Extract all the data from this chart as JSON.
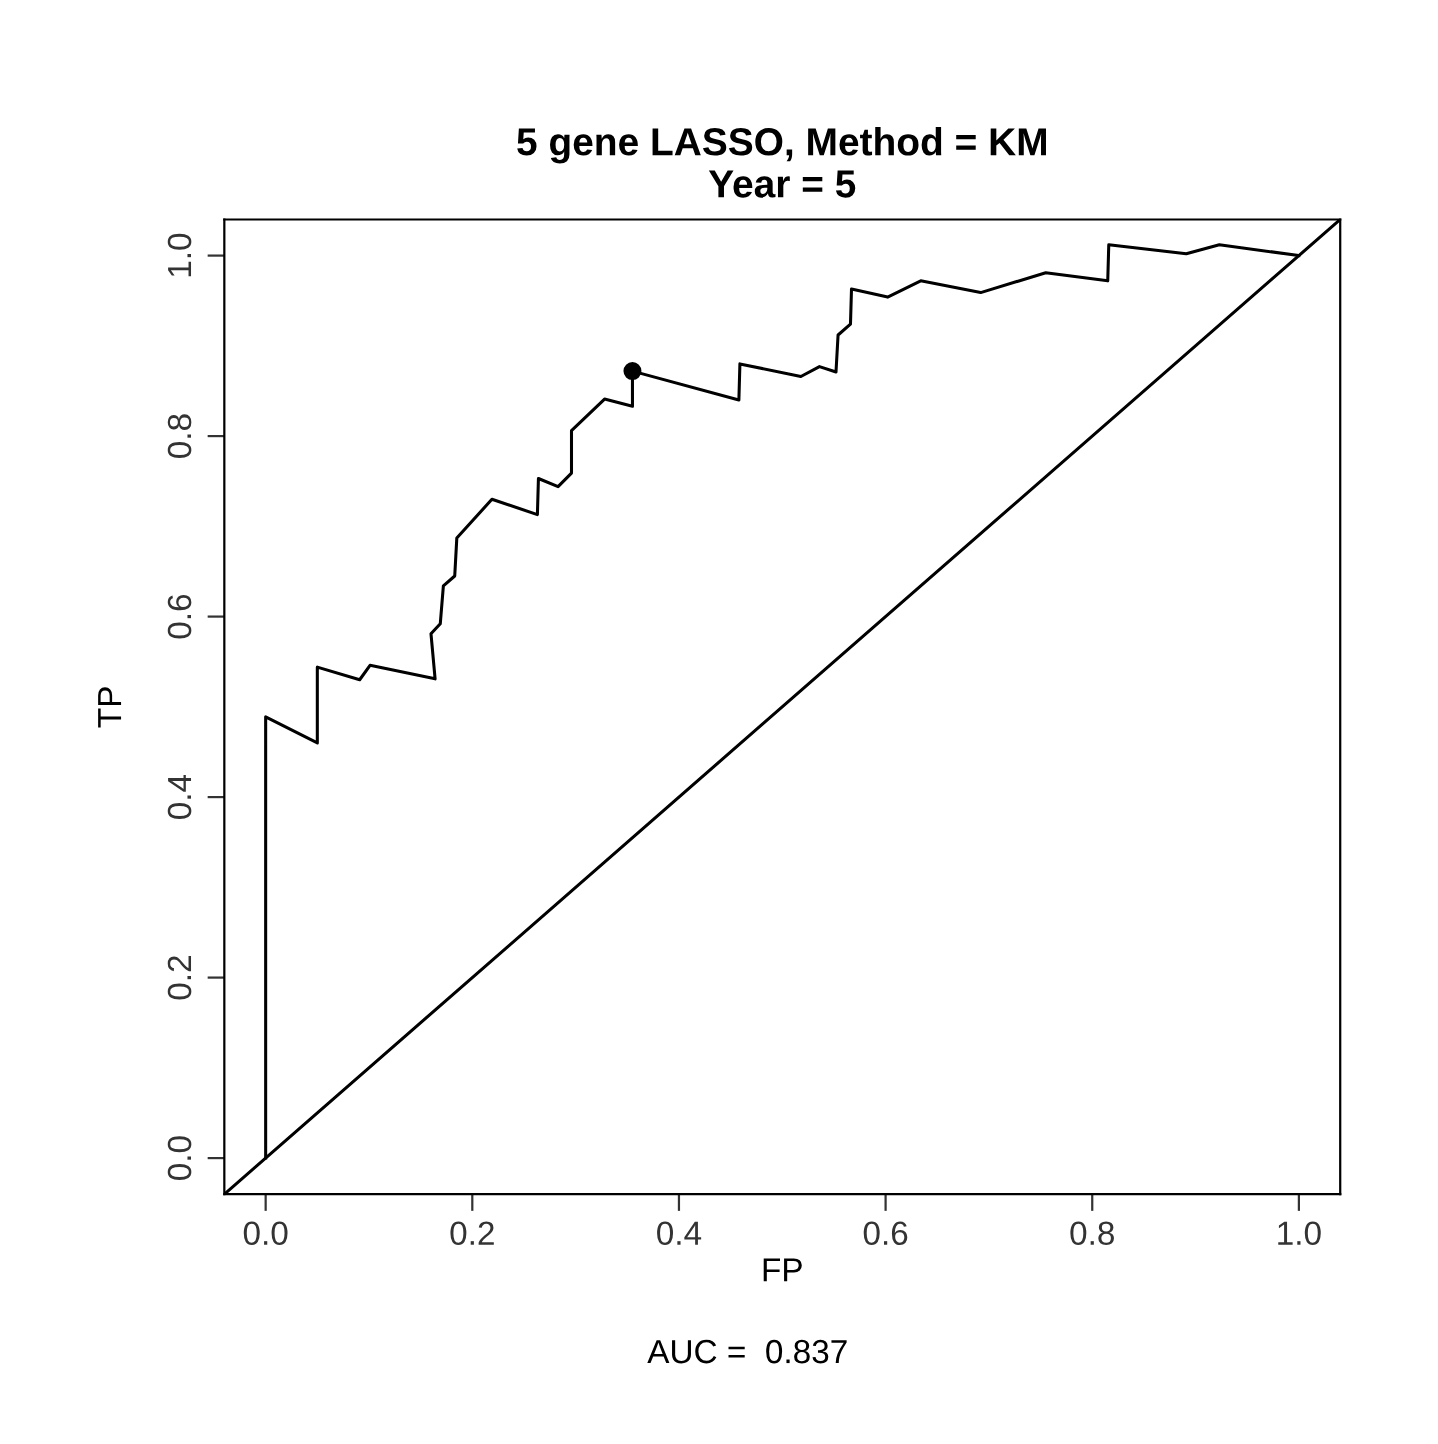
{
  "chart_data": {
    "type": "line",
    "title": "5 gene LASSO, Method = KM\nYear = 5",
    "xlabel": "FP",
    "ylabel": "TP",
    "annotations": [
      "AUC =  0.837"
    ],
    "xlim": [
      -0.04,
      1.04
    ],
    "ylim": [
      -0.04,
      1.04
    ],
    "xticks": [
      {
        "value": 0,
        "label": "0.0"
      },
      0.2,
      0.4,
      0.6,
      0.8,
      {
        "value": 1,
        "label": "1.0"
      }
    ],
    "yticks": [
      {
        "value": 0,
        "label": "0.0"
      },
      0.2,
      0.4,
      0.6,
      0.8,
      {
        "value": 1,
        "label": "1.0"
      }
    ],
    "grid": false,
    "legend": false,
    "series": [
      {
        "color": "#000000",
        "x": [
          0,
          0,
          0.05,
          0.05,
          0.091,
          0.101,
          0.164,
          0.16,
          0.169,
          0.172,
          0.183,
          0.185,
          0.219,
          0.263,
          0.264,
          0.283,
          0.296,
          0.296,
          0.328,
          0.355,
          0.355,
          0.458,
          0.459,
          0.518,
          0.536,
          0.552,
          0.554,
          0.566,
          0.567,
          0.602,
          0.634,
          0.692,
          0.755,
          0.815,
          0.816,
          0.891,
          0.923,
          1.0
        ],
        "values": [
          0,
          0.489,
          0.46,
          0.544,
          0.53,
          0.546,
          0.531,
          0.581,
          0.592,
          0.634,
          0.645,
          0.687,
          0.73,
          0.713,
          0.753,
          0.744,
          0.759,
          0.806,
          0.841,
          0.833,
          0.872,
          0.84,
          0.88,
          0.866,
          0.877,
          0.871,
          0.912,
          0.924,
          0.963,
          0.954,
          0.972,
          0.959,
          0.981,
          0.972,
          1.012,
          1.002,
          1.012,
          1.0
        ]
      },
      {
        "type": "line",
        "color": "#000000",
        "x": [
          -0.04,
          1.04
        ],
        "values": [
          -0.04,
          1.04
        ]
      },
      {
        "type": "scatter",
        "color": "#000000",
        "marker": "circle",
        "x": [
          0.355
        ],
        "values": [
          0.872
        ]
      }
    ]
  }
}
